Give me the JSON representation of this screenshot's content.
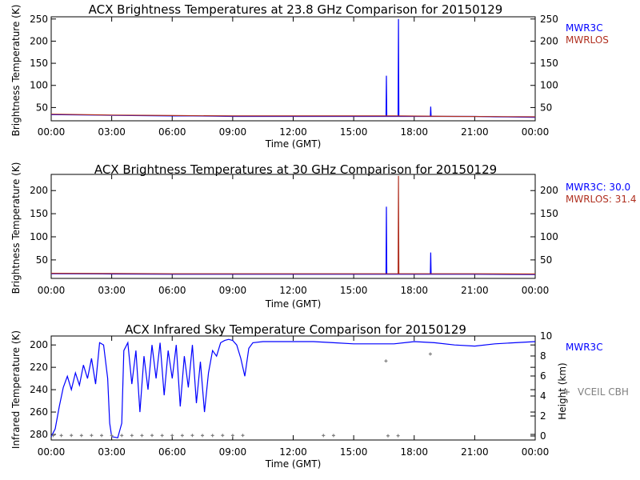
{
  "chart_data": [
    {
      "type": "line",
      "title": "ACX  Brightness Temperatures at 23.8 GHz Comparison for 20150129",
      "xlabel": "Time (GMT)",
      "ylabel": "Brightness Temperature (K)",
      "xticks": [
        "00:00",
        "03:00",
        "06:00",
        "09:00",
        "12:00",
        "15:00",
        "18:00",
        "21:00",
        "00:00"
      ],
      "xlim": [
        0,
        24
      ],
      "ylim": [
        20,
        255
      ],
      "yticks": [
        50,
        100,
        150,
        200,
        250
      ],
      "yticks_labels": [
        "50",
        "100",
        "150",
        "200",
        "250"
      ],
      "legend_position": "right",
      "series": [
        {
          "name": "MWR3C",
          "color": "#0000ff",
          "points": [
            [
              0,
              34
            ],
            [
              1,
              33.5
            ],
            [
              2,
              33
            ],
            [
              3,
              32.5
            ],
            [
              4,
              32
            ],
            [
              5,
              31.5
            ],
            [
              6,
              31
            ],
            [
              7,
              31
            ],
            [
              8,
              30.5
            ],
            [
              9,
              30
            ],
            [
              10,
              30
            ],
            [
              11,
              30
            ],
            [
              12,
              30
            ],
            [
              13,
              30
            ],
            [
              14,
              30
            ],
            [
              15,
              30
            ],
            [
              16,
              30
            ],
            [
              16.6,
              30
            ],
            [
              16.62,
              122
            ],
            [
              16.64,
              30
            ],
            [
              17.2,
              30
            ],
            [
              17.22,
              250
            ],
            [
              17.24,
              30
            ],
            [
              18.8,
              30
            ],
            [
              18.82,
              52
            ],
            [
              18.84,
              30
            ],
            [
              20,
              30
            ],
            [
              21,
              30
            ],
            [
              22,
              29
            ],
            [
              23,
              28.5
            ],
            [
              24,
              28
            ]
          ]
        },
        {
          "name": "MWRLOS",
          "color": "#b03020",
          "points": [
            [
              0,
              35
            ],
            [
              3,
              33
            ],
            [
              6,
              32
            ],
            [
              9,
              31
            ],
            [
              12,
              31
            ],
            [
              15,
              31
            ],
            [
              17,
              31
            ],
            [
              20,
              30
            ],
            [
              22,
              29.5
            ],
            [
              24,
              29
            ]
          ]
        }
      ]
    },
    {
      "type": "line",
      "title": "ACX  Brightness Temperatures at 30 GHz Comparison for 20150129",
      "xlabel": "Time (GMT)",
      "ylabel": "Brightness Temperature (K)",
      "xticks": [
        "00:00",
        "03:00",
        "06:00",
        "09:00",
        "12:00",
        "15:00",
        "18:00",
        "21:00",
        "00:00"
      ],
      "xlim": [
        0,
        24
      ],
      "ylim": [
        10,
        235
      ],
      "yticks": [
        50,
        100,
        150,
        200
      ],
      "yticks_labels": [
        "50",
        "100",
        "150",
        "200"
      ],
      "legend_position": "right",
      "series": [
        {
          "name": "MWR3C: 30.0",
          "color": "#0000ff",
          "points": [
            [
              0,
              20
            ],
            [
              3,
              19.5
            ],
            [
              6,
              19
            ],
            [
              9,
              19
            ],
            [
              12,
              19
            ],
            [
              15,
              19
            ],
            [
              16.6,
              19
            ],
            [
              16.62,
              165
            ],
            [
              16.64,
              19
            ],
            [
              18.8,
              19
            ],
            [
              18.82,
              66
            ],
            [
              18.84,
              19
            ],
            [
              21,
              19
            ],
            [
              24,
              18.5
            ]
          ]
        },
        {
          "name": "MWRLOS: 31.4",
          "color": "#b03020",
          "points": [
            [
              0,
              21
            ],
            [
              3,
              20.5
            ],
            [
              6,
              20
            ],
            [
              9,
              20
            ],
            [
              12,
              20
            ],
            [
              15,
              20
            ],
            [
              17.2,
              20
            ],
            [
              17.22,
              232
            ],
            [
              17.24,
              20
            ],
            [
              21,
              20
            ],
            [
              24,
              19.5
            ]
          ]
        }
      ]
    },
    {
      "type": "line",
      "title": "ACX  Infrared Sky Temperature Comparison for 20150129",
      "xlabel": "Time (GMT)",
      "ylabel": "Infrared Temperature (K)",
      "ylabel_right": "Height (km)",
      "xticks": [
        "00:00",
        "03:00",
        "06:00",
        "09:00",
        "12:00",
        "15:00",
        "18:00",
        "21:00",
        "00:00"
      ],
      "xlim": [
        0,
        24
      ],
      "ylim": [
        285,
        192
      ],
      "yticks": [
        200,
        220,
        240,
        260,
        280
      ],
      "yticks_labels": [
        "200",
        "220",
        "240",
        "260",
        "280"
      ],
      "y2lim": [
        -0.4,
        10
      ],
      "y2ticks": [
        0,
        2,
        4,
        6,
        8,
        10
      ],
      "y2ticks_labels": [
        "0",
        "2",
        "4",
        "6",
        "8",
        "10"
      ],
      "legend_position": "right",
      "series": [
        {
          "name": "MWR3C",
          "color": "#0000ff",
          "axis": "left",
          "points": [
            [
              0,
              282
            ],
            [
              0.2,
              275
            ],
            [
              0.4,
              255
            ],
            [
              0.6,
              238
            ],
            [
              0.8,
              228
            ],
            [
              1.0,
              240
            ],
            [
              1.2,
              225
            ],
            [
              1.4,
              236
            ],
            [
              1.6,
              218
            ],
            [
              1.8,
              230
            ],
            [
              2.0,
              212
            ],
            [
              2.2,
              235
            ],
            [
              2.4,
              198
            ],
            [
              2.6,
              200
            ],
            [
              2.8,
              230
            ],
            [
              2.9,
              270
            ],
            [
              3.0,
              282
            ],
            [
              3.3,
              283
            ],
            [
              3.5,
              270
            ],
            [
              3.6,
              205
            ],
            [
              3.8,
              198
            ],
            [
              4.0,
              235
            ],
            [
              4.2,
              205
            ],
            [
              4.4,
              260
            ],
            [
              4.6,
              210
            ],
            [
              4.8,
              240
            ],
            [
              5.0,
              200
            ],
            [
              5.2,
              230
            ],
            [
              5.4,
              198
            ],
            [
              5.6,
              245
            ],
            [
              5.8,
              205
            ],
            [
              6.0,
              230
            ],
            [
              6.2,
              200
            ],
            [
              6.4,
              255
            ],
            [
              6.6,
              210
            ],
            [
              6.8,
              238
            ],
            [
              7.0,
              200
            ],
            [
              7.2,
              252
            ],
            [
              7.4,
              215
            ],
            [
              7.6,
              260
            ],
            [
              7.8,
              225
            ],
            [
              8.0,
              205
            ],
            [
              8.2,
              210
            ],
            [
              8.4,
              198
            ],
            [
              8.6,
              196
            ],
            [
              8.8,
              195
            ],
            [
              9.0,
              196
            ],
            [
              9.2,
              200
            ],
            [
              9.4,
              212
            ],
            [
              9.6,
              228
            ],
            [
              9.8,
              203
            ],
            [
              10.0,
              198
            ],
            [
              10.5,
              197
            ],
            [
              11.0,
              197
            ],
            [
              12.0,
              197
            ],
            [
              13.0,
              197
            ],
            [
              14.0,
              198
            ],
            [
              15.0,
              199
            ],
            [
              16.0,
              199
            ],
            [
              17.0,
              199
            ],
            [
              18.0,
              197
            ],
            [
              19.0,
              198
            ],
            [
              20.0,
              200
            ],
            [
              21.0,
              201
            ],
            [
              22.0,
              199
            ],
            [
              23.0,
              198
            ],
            [
              24.0,
              197
            ]
          ]
        },
        {
          "name": "VCEIL CBH",
          "color": "#808080",
          "axis": "right",
          "marker": "plus",
          "points": [
            [
              0.1,
              0.05
            ],
            [
              0.5,
              0.05
            ],
            [
              1.0,
              0.06
            ],
            [
              1.5,
              0.05
            ],
            [
              2.0,
              0.06
            ],
            [
              2.5,
              0.05
            ],
            [
              3.0,
              0.04
            ],
            [
              3.5,
              0.05
            ],
            [
              4.0,
              0.05
            ],
            [
              4.5,
              0.05
            ],
            [
              5.0,
              0.06
            ],
            [
              5.5,
              0.05
            ],
            [
              6.0,
              0.05
            ],
            [
              6.5,
              0.05
            ],
            [
              7.0,
              0.06
            ],
            [
              7.5,
              0.05
            ],
            [
              8.0,
              0.05
            ],
            [
              8.5,
              0.06
            ],
            [
              9.0,
              0.05
            ],
            [
              9.5,
              0.06
            ],
            [
              13.5,
              0.05
            ],
            [
              14.0,
              0.05
            ],
            [
              16.6,
              7.5
            ],
            [
              16.7,
              0.02
            ],
            [
              17.2,
              0.03
            ],
            [
              18.8,
              8.2
            ]
          ]
        }
      ]
    }
  ]
}
